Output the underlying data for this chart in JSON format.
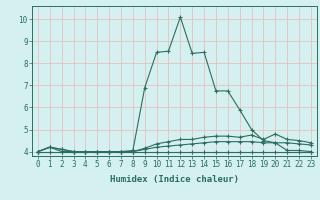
{
  "x": [
    0,
    1,
    2,
    3,
    4,
    5,
    6,
    7,
    8,
    9,
    10,
    11,
    12,
    13,
    14,
    15,
    16,
    17,
    18,
    19,
    20,
    21,
    22,
    23
  ],
  "line1": [
    4.0,
    4.0,
    4.0,
    4.0,
    4.0,
    4.0,
    4.0,
    4.0,
    4.0,
    4.0,
    4.0,
    4.0,
    4.0,
    4.0,
    4.0,
    4.0,
    4.0,
    4.0,
    4.0,
    4.0,
    4.0,
    4.0,
    4.0,
    4.0
  ],
  "line2": [
    4.0,
    4.2,
    4.0,
    4.0,
    4.0,
    4.0,
    4.0,
    4.0,
    4.0,
    4.1,
    4.2,
    4.25,
    4.3,
    4.35,
    4.4,
    4.45,
    4.45,
    4.45,
    4.45,
    4.4,
    4.4,
    4.4,
    4.35,
    4.3
  ],
  "line3": [
    4.0,
    4.2,
    4.1,
    4.0,
    4.0,
    4.0,
    4.0,
    4.0,
    4.0,
    4.15,
    4.35,
    4.45,
    4.55,
    4.55,
    4.65,
    4.7,
    4.7,
    4.65,
    4.75,
    4.55,
    4.8,
    4.55,
    4.5,
    4.4
  ],
  "line4": [
    4.0,
    4.2,
    4.1,
    4.0,
    4.0,
    4.0,
    4.0,
    4.0,
    4.05,
    6.9,
    8.5,
    8.55,
    10.1,
    8.45,
    8.5,
    6.75,
    6.75,
    5.9,
    5.0,
    4.5,
    4.4,
    4.05,
    4.05,
    4.0
  ],
  "bg_color": "#d5f0f0",
  "grid_color": "#e8c0c0",
  "line_color": "#2a6e60",
  "xlabel": "Humidex (Indice chaleur)",
  "ylim": [
    3.8,
    10.6
  ],
  "xlim": [
    -0.5,
    23.5
  ],
  "yticks": [
    4,
    5,
    6,
    7,
    8,
    9,
    10
  ],
  "xticks": [
    0,
    1,
    2,
    3,
    4,
    5,
    6,
    7,
    8,
    9,
    10,
    11,
    12,
    13,
    14,
    15,
    16,
    17,
    18,
    19,
    20,
    21,
    22,
    23
  ],
  "axis_fontsize": 6.5,
  "tick_fontsize": 5.5
}
